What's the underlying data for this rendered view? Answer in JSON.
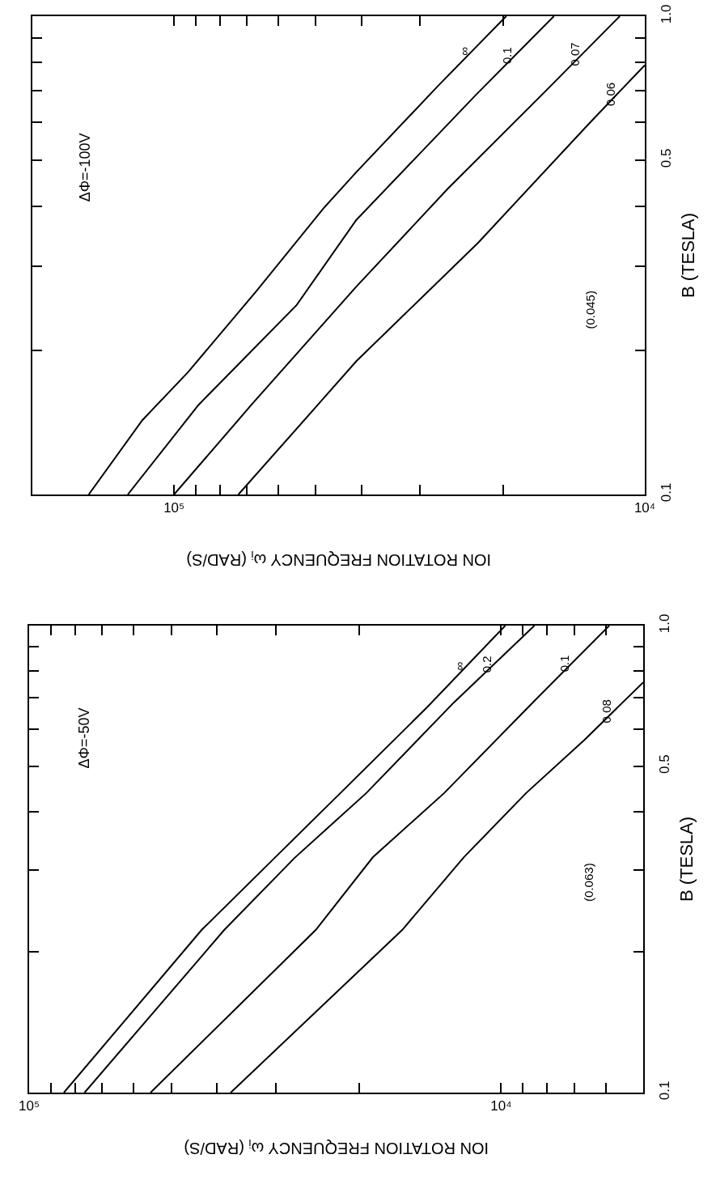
{
  "chart_data": [
    {
      "type": "line",
      "xlabel": "ION ROTATION FREQUENCY ω$_{i}$ (RAD/S)",
      "ylabel": "B (TESLA)",
      "log": "xy",
      "grid": false,
      "legend": false,
      "marker": "none",
      "line_style": "solid",
      "xlim": [
        100000,
        5000
      ],
      "xticks": [
        {
          "value": 100000,
          "label": "10⁵"
        },
        {
          "value": 90000,
          "label": null
        },
        {
          "value": 80000,
          "label": null
        },
        {
          "value": 70000,
          "label": null
        },
        {
          "value": 60000,
          "label": null
        },
        {
          "value": 50000,
          "label": null
        },
        {
          "value": 40000,
          "label": null
        },
        {
          "value": 30000,
          "label": null
        },
        {
          "value": 20000,
          "label": null
        },
        {
          "value": 10000,
          "label": "10⁴"
        },
        {
          "value": 9000,
          "label": null
        },
        {
          "value": 8000,
          "label": null
        },
        {
          "value": 7000,
          "label": null
        },
        {
          "value": 6000,
          "label": null
        }
      ],
      "ylim": [
        0.1,
        1
      ],
      "yticks": [
        {
          "value": 0.1,
          "label": "0.1"
        },
        {
          "value": 0.2,
          "label": null
        },
        {
          "value": 0.3,
          "label": null
        },
        {
          "value": 0.4,
          "label": null
        },
        {
          "value": 0.5,
          "label": "0.5"
        },
        {
          "value": 0.6,
          "label": null
        },
        {
          "value": 0.7,
          "label": null
        },
        {
          "value": 0.8,
          "label": null
        },
        {
          "value": 0.9,
          "label": null
        },
        {
          "value": 1,
          "label": "1.0"
        }
      ],
      "series": [
        {
          "name": "∞",
          "color": "#000000",
          "x": [
            84400,
            43100,
            30200,
            21900,
            14300,
            9800
          ],
          "values": [
            0.1,
            0.223,
            0.318,
            0.438,
            0.671,
            1.0
          ]
        },
        {
          "name": "0.2",
          "color": "#000000",
          "x": [
            76300,
            38600,
            27400,
            19300,
            12600,
            8500
          ],
          "values": [
            0.1,
            0.223,
            0.318,
            0.438,
            0.684,
            1.0
          ]
        },
        {
          "name": "0.1",
          "color": "#000000",
          "x": [
            55300,
            24700,
            18700,
            13200,
            8500,
            5900
          ],
          "values": [
            0.1,
            0.223,
            0.319,
            0.438,
            0.69,
            1.0
          ]
        },
        {
          "name": "0.08",
          "color": "#000000",
          "x": [
            37400,
            16200,
            12000,
            8850,
            6660,
            5000
          ],
          "values": [
            0.1,
            0.223,
            0.319,
            0.438,
            0.569,
            0.756
          ]
        }
      ],
      "annotations": [
        "ΔΦ=-50V",
        "(0.063)"
      ]
    },
    {
      "type": "line",
      "xlabel": "ION ROTATION FREQUENCY ω$_{i}$ (RAD/S)",
      "ylabel": "B (TESLA)",
      "log": "xy",
      "grid": false,
      "legend": false,
      "marker": "none",
      "line_style": "solid",
      "xlim": [
        200000,
        10000
      ],
      "xticks": [
        {
          "value": 100000,
          "label": "10⁵"
        },
        {
          "value": 90000,
          "label": null
        },
        {
          "value": 80000,
          "label": null
        },
        {
          "value": 70000,
          "label": null
        },
        {
          "value": 60000,
          "label": null
        },
        {
          "value": 50000,
          "label": null
        },
        {
          "value": 40000,
          "label": null
        },
        {
          "value": 30000,
          "label": null
        },
        {
          "value": 20000,
          "label": null
        },
        {
          "value": 10000,
          "label": "10⁴"
        }
      ],
      "ylim": [
        0.1,
        1
      ],
      "yticks": [
        {
          "value": 0.1,
          "label": "0.1"
        },
        {
          "value": 0.2,
          "label": null
        },
        {
          "value": 0.3,
          "label": null
        },
        {
          "value": 0.4,
          "label": null
        },
        {
          "value": 0.5,
          "label": "0.5"
        },
        {
          "value": 0.6,
          "label": null
        },
        {
          "value": 0.7,
          "label": null
        },
        {
          "value": 0.8,
          "label": null
        },
        {
          "value": 0.9,
          "label": null
        },
        {
          "value": 1,
          "label": "1.0"
        }
      ],
      "series": [
        {
          "name": "∞",
          "color": "#000000",
          "x": [
            151800,
            116800,
            93500,
            66900,
            48100,
            41000,
            27600,
            19700
          ],
          "values": [
            0.1,
            0.143,
            0.18,
            0.266,
            0.397,
            0.472,
            0.712,
            1.0
          ]
        },
        {
          "name": "0.1",
          "color": "#000000",
          "x": [
            125400,
            88700,
            54900,
            41000,
            22900,
            15600
          ],
          "values": [
            0.1,
            0.154,
            0.249,
            0.375,
            0.683,
            1.0
          ]
        },
        {
          "name": "0.07",
          "color": "#000000",
          "x": [
            100000,
            68500,
            41000,
            26200,
            16400,
            11300
          ],
          "values": [
            0.1,
            0.154,
            0.272,
            0.436,
            0.691,
            1.0
          ]
        },
        {
          "name": "0.06",
          "color": "#000000",
          "x": [
            73000,
            49500,
            41000,
            22600,
            13100,
            10000
          ],
          "values": [
            0.1,
            0.154,
            0.19,
            0.336,
            0.598,
            0.79
          ]
        }
      ],
      "annotations": [
        "ΔΦ=-100V",
        "(0.045)"
      ]
    }
  ]
}
